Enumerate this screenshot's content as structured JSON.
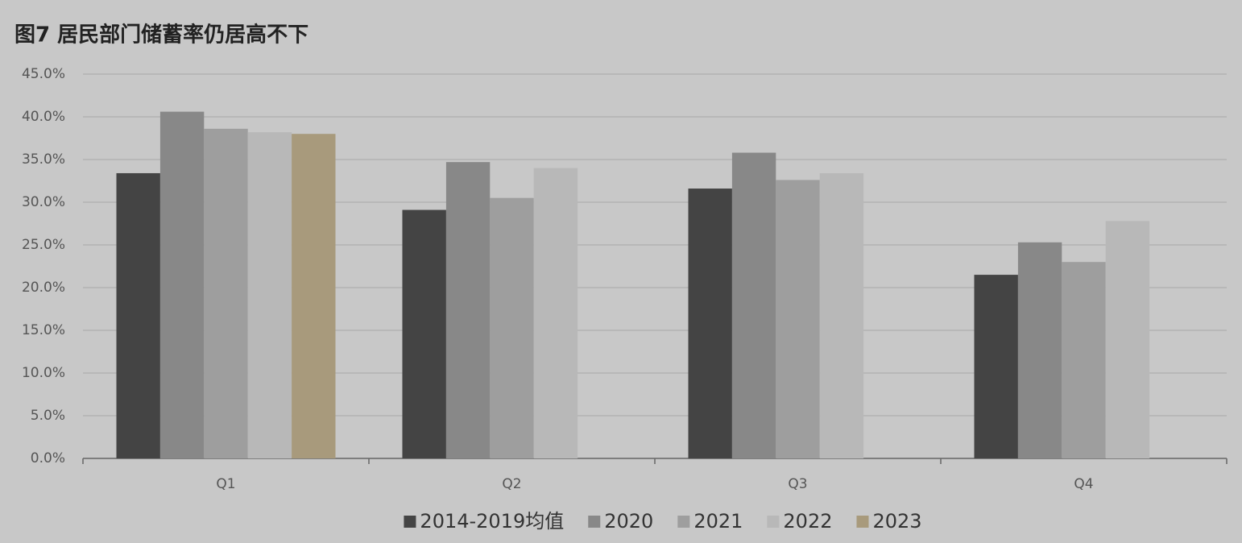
{
  "chart_data": {
    "type": "bar",
    "title": "图7 居民部门储蓄率仍居高不下",
    "categories": [
      "Q1",
      "Q2",
      "Q3",
      "Q4"
    ],
    "series": [
      {
        "name": "2014-2019均值",
        "color": "#444444",
        "values": [
          33.4,
          29.1,
          31.6,
          21.5
        ]
      },
      {
        "name": "2020",
        "color": "#888888",
        "values": [
          40.6,
          34.7,
          35.8,
          25.3
        ]
      },
      {
        "name": "2021",
        "color": "#9e9e9e",
        "values": [
          38.6,
          30.5,
          32.6,
          23.0
        ]
      },
      {
        "name": "2022",
        "color": "#b8b8b8",
        "values": [
          38.2,
          34.0,
          33.4,
          27.8
        ]
      },
      {
        "name": "2023",
        "color": "#a89a7c",
        "values": [
          38.0,
          null,
          null,
          null
        ]
      }
    ],
    "ylim": [
      0,
      45
    ],
    "yticks": [
      {
        "value": 0,
        "label": "0.0%"
      },
      {
        "value": 5,
        "label": "5.0%"
      },
      {
        "value": 10,
        "label": "10.0%"
      },
      {
        "value": 15,
        "label": "15.0%"
      },
      {
        "value": 20,
        "label": "20.0%"
      },
      {
        "value": 25,
        "label": "25.0%"
      },
      {
        "value": 30,
        "label": "30.0%"
      },
      {
        "value": 35,
        "label": "35.0%"
      },
      {
        "value": 40,
        "label": "40.0%"
      },
      {
        "value": 45,
        "label": "45.0%"
      }
    ],
    "grid": true,
    "legend": "bottom"
  }
}
